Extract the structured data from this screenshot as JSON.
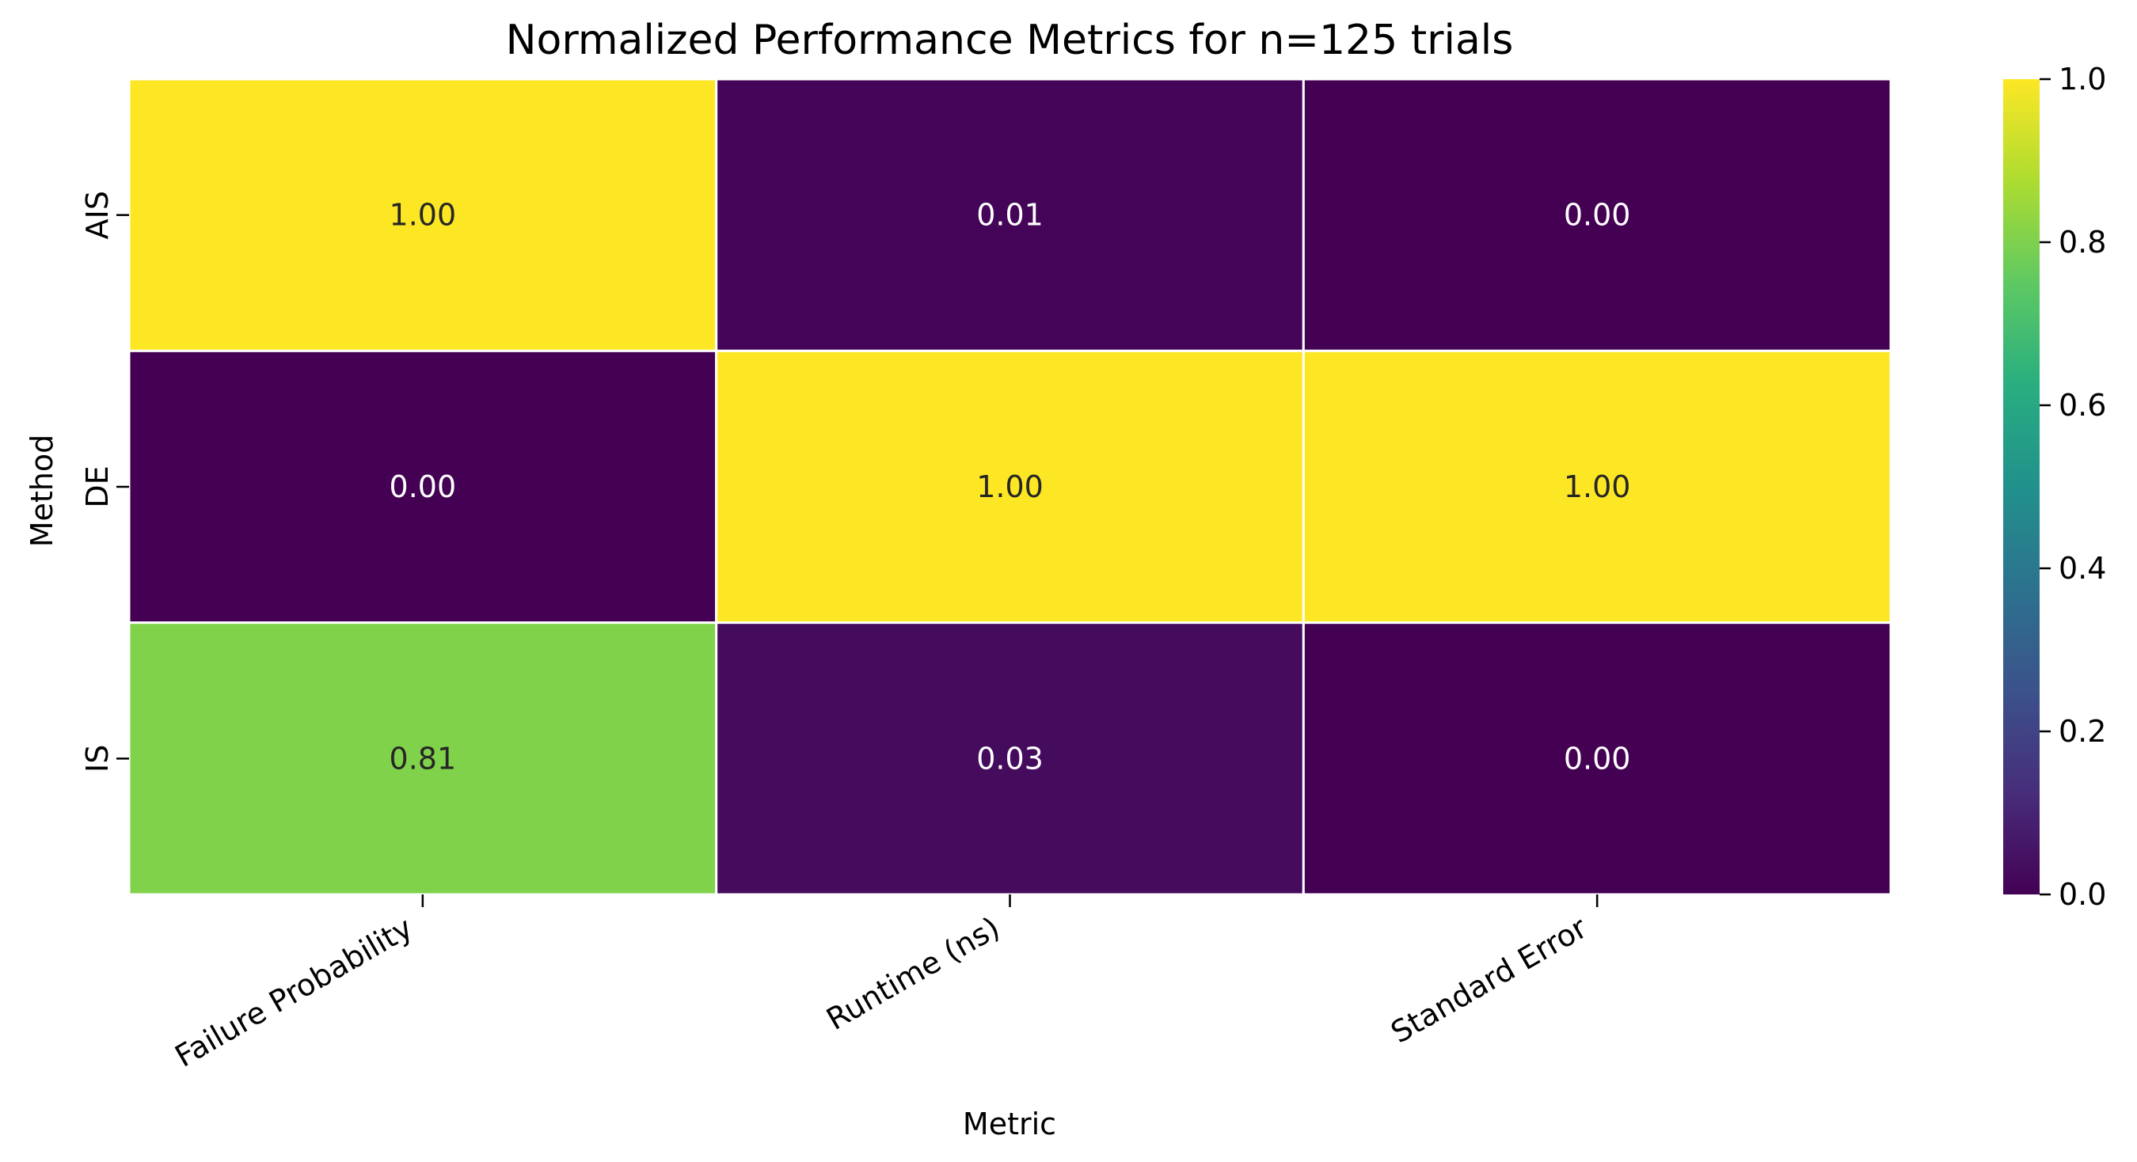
{
  "chart_data": {
    "type": "heatmap",
    "title": "Normalized Performance Metrics for n=125 trials",
    "xlabel": "Metric",
    "ylabel": "Method",
    "x_categories": [
      "Failure Probability",
      "Runtime (ns)",
      "Standard Error"
    ],
    "y_categories": [
      "AIS",
      "DE",
      "IS"
    ],
    "values": [
      [
        1.0,
        0.01,
        0.0
      ],
      [
        0.0,
        1.0,
        1.0
      ],
      [
        0.81,
        0.03,
        0.0
      ]
    ],
    "value_labels": [
      [
        "1.00",
        "0.01",
        "0.00"
      ],
      [
        "0.00",
        "1.00",
        "1.00"
      ],
      [
        "0.81",
        "0.03",
        "0.00"
      ]
    ],
    "colormap": "viridis",
    "colorbar": {
      "range": [
        0.0,
        1.0
      ],
      "ticks": [
        "0.0",
        "0.2",
        "0.4",
        "0.6",
        "0.8",
        "1.0"
      ]
    },
    "cell_border_color": "#ffffff"
  }
}
